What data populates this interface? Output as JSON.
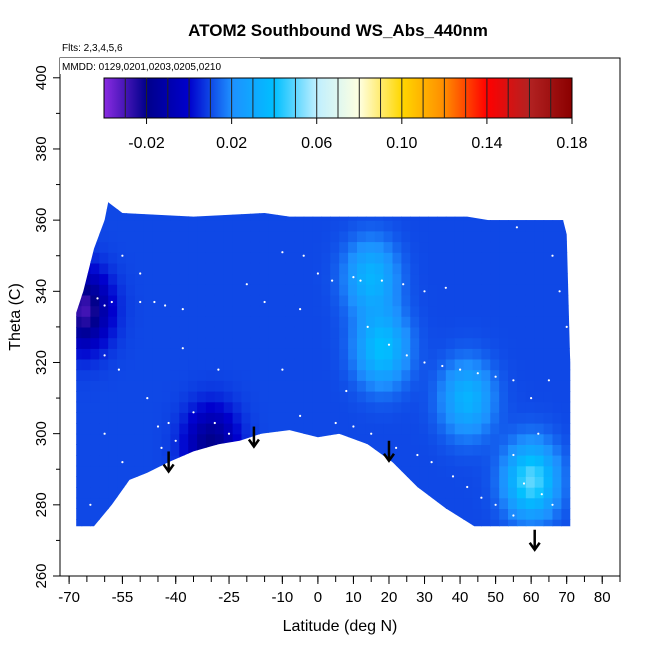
{
  "chart_data": {
    "type": "heatmap",
    "title": "ATOM2 Southbound WS_Abs_440nm",
    "annotations": [
      "Flts: 2,3,4,5,6",
      "MMDD: 0129,0201,0203,0205,0210"
    ],
    "xlabel": "Latitude (deg N)",
    "ylabel": "Theta (C)",
    "xlim": [
      -72,
      85
    ],
    "ylim": [
      260,
      405
    ],
    "xticks": [
      -70,
      -55,
      -40,
      -25,
      -10,
      0,
      10,
      20,
      30,
      40,
      50,
      60,
      70,
      80
    ],
    "yticks": [
      260,
      280,
      300,
      320,
      340,
      360,
      380,
      400
    ],
    "colorbar": {
      "ticks": [
        -0.02,
        0.02,
        0.06,
        0.1,
        0.14,
        0.18
      ],
      "tick_labels": [
        "-0.02",
        "0.02",
        "0.06",
        "0.10",
        "0.14",
        "0.18"
      ],
      "range": [
        -0.04,
        0.18
      ],
      "colors": [
        "#8a2be2",
        "#00008b",
        "#0000cd",
        "#1e90ff",
        "#00bfff",
        "#bfefff",
        "#ffffe0",
        "#ffd700",
        "#ff8c00",
        "#ff0000",
        "#b22222",
        "#8b0000"
      ]
    },
    "background_value": 0.01,
    "features": [
      {
        "lat": -66,
        "theta": 335,
        "value": -0.03
      },
      {
        "lat": -30,
        "theta": 297,
        "value": -0.02
      },
      {
        "lat": 18,
        "theta": 324,
        "value": 0.04
      },
      {
        "lat": 42,
        "theta": 310,
        "value": 0.035
      },
      {
        "lat": 60,
        "theta": 287,
        "value": 0.05
      },
      {
        "lat": 15,
        "theta": 344,
        "value": 0.035
      }
    ],
    "arrows_lat": [
      -42,
      -18,
      20
    ],
    "arrows_low": [
      {
        "lat": 61,
        "theta": 270
      }
    ],
    "arrow_theta": [
      295,
      302,
      298
    ]
  }
}
